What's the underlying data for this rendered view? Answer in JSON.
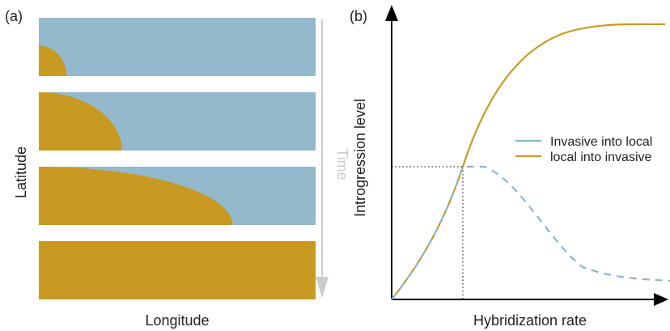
{
  "panel_a": {
    "label": "(a)",
    "xlabel": "Longitude",
    "ylabel": "Latitude",
    "time_label": "Time",
    "colors": {
      "local": "#94b8cc",
      "invasive": "#c89a22",
      "time_arrow": "#cccccc"
    },
    "spread_fraction": [
      0.1,
      0.3,
      0.7,
      1.0
    ]
  },
  "panel_b": {
    "label": "(b)",
    "xlabel": "Hybridization rate",
    "ylabel": "Introgression level",
    "legend": [
      {
        "label": "Invasive into local",
        "color": "#8ab8cc",
        "style": "dashed"
      },
      {
        "label": "local into invasive",
        "color": "#c89a22",
        "style": "solid"
      }
    ]
  }
}
